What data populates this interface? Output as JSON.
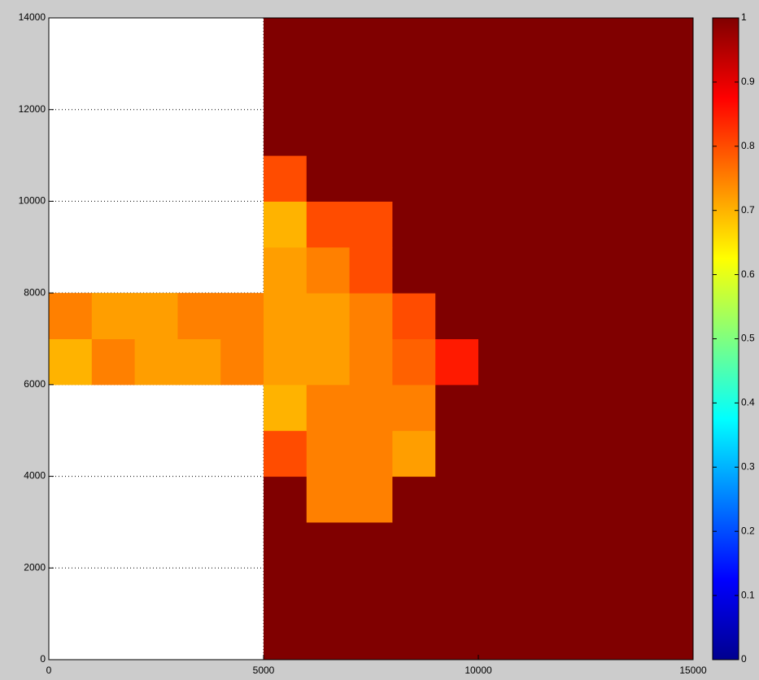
{
  "chart_data": {
    "type": "heatmap",
    "x": [
      500,
      1500,
      2500,
      3500,
      4500,
      5500,
      6500,
      7500,
      8500,
      9500,
      10500,
      11500,
      12500,
      13500,
      14500
    ],
    "y": [
      500,
      1500,
      2500,
      3500,
      4500,
      5500,
      6500,
      7500,
      8500,
      9500,
      10500,
      11500,
      12500,
      13500
    ],
    "z": [
      [
        null,
        null,
        null,
        null,
        null,
        1,
        1,
        1,
        1,
        1,
        1,
        1,
        1,
        1,
        1
      ],
      [
        null,
        null,
        null,
        null,
        null,
        1,
        1,
        1,
        1,
        1,
        1,
        1,
        1,
        1,
        1
      ],
      [
        null,
        null,
        null,
        null,
        null,
        1,
        1,
        1,
        1,
        1,
        1,
        1,
        1,
        1,
        1
      ],
      [
        null,
        null,
        null,
        null,
        null,
        1,
        0.75,
        0.75,
        1,
        1,
        1,
        1,
        1,
        1,
        1
      ],
      [
        null,
        null,
        null,
        null,
        null,
        0.8,
        0.75,
        0.75,
        0.72,
        1,
        1,
        1,
        1,
        1,
        1
      ],
      [
        null,
        null,
        null,
        null,
        null,
        0.7,
        0.75,
        0.75,
        0.75,
        1,
        1,
        1,
        1,
        1,
        1
      ],
      [
        0.7,
        0.75,
        0.72,
        0.72,
        0.75,
        0.72,
        0.72,
        0.75,
        0.78,
        0.85,
        1,
        1,
        1,
        1,
        1
      ],
      [
        0.75,
        0.72,
        0.72,
        0.75,
        0.75,
        0.72,
        0.72,
        0.75,
        0.8,
        1,
        1,
        1,
        1,
        1,
        1
      ],
      [
        null,
        null,
        null,
        null,
        null,
        0.72,
        0.75,
        0.8,
        1,
        1,
        1,
        1,
        1,
        1,
        1
      ],
      [
        null,
        null,
        null,
        null,
        null,
        0.7,
        0.8,
        0.8,
        1,
        1,
        1,
        1,
        1,
        1,
        1
      ],
      [
        null,
        null,
        null,
        null,
        null,
        0.8,
        1,
        1,
        1,
        1,
        1,
        1,
        1,
        1,
        1
      ],
      [
        null,
        null,
        null,
        null,
        null,
        1,
        1,
        1,
        1,
        1,
        1,
        1,
        1,
        1,
        1
      ],
      [
        null,
        null,
        null,
        null,
        null,
        1,
        1,
        1,
        1,
        1,
        1,
        1,
        1,
        1,
        1
      ],
      [
        null,
        null,
        null,
        null,
        null,
        1,
        1,
        1,
        1,
        1,
        1,
        1,
        1,
        1,
        1
      ]
    ],
    "xlim": [
      0,
      15000
    ],
    "xticks": [
      0,
      5000,
      10000,
      15000
    ],
    "ylim": [
      0,
      14000
    ],
    "yticks": [
      0,
      2000,
      4000,
      6000,
      8000,
      10000,
      12000,
      14000
    ],
    "grid": true,
    "colormap": "jet",
    "clim": [
      0,
      1
    ],
    "cticks": [
      0,
      0.1,
      0.2,
      0.3,
      0.4,
      0.5,
      0.6,
      0.7,
      0.8,
      0.9,
      1
    ]
  }
}
